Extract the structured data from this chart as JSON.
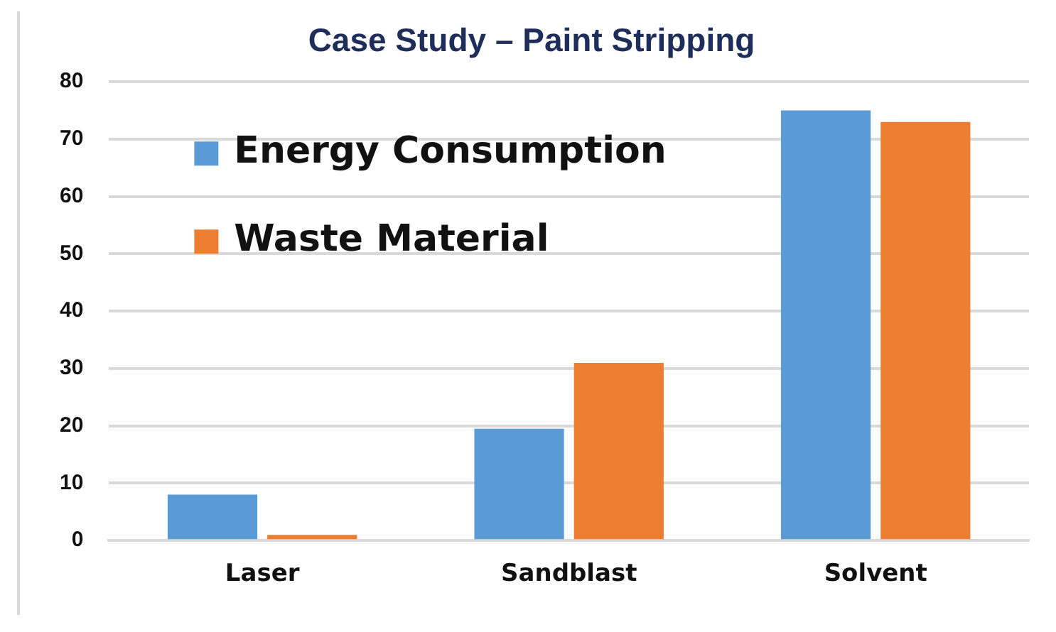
{
  "chart_data": {
    "type": "bar",
    "title": "Case Study – Paint Stripping",
    "categories": [
      "Laser",
      "Sandblast",
      "Solvent"
    ],
    "series": [
      {
        "name": "Energy Consumption",
        "color": "#5b9bd5",
        "values": [
          8,
          19.5,
          75
        ]
      },
      {
        "name": "Waste Material",
        "color": "#ed7d31",
        "values": [
          1,
          31,
          73
        ]
      }
    ],
    "ylim": [
      0,
      80
    ],
    "yticks": [
      0,
      10,
      20,
      30,
      40,
      50,
      60,
      70,
      80
    ],
    "grid": "y",
    "legend": "top left"
  }
}
